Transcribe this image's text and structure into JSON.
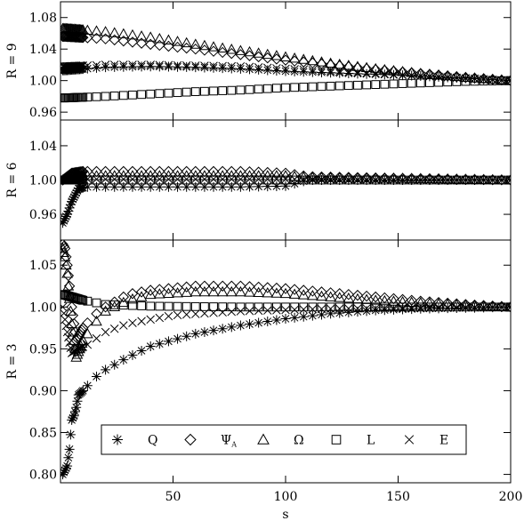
{
  "chart_data": {
    "type": "scatter",
    "xlabel": "s",
    "xlim": [
      0,
      200
    ],
    "xticks": [
      50,
      100,
      150,
      200
    ],
    "markers": {
      "Q": "asterisk",
      "Psi_A": "diamond",
      "Omega": "triangle",
      "L": "square",
      "E": "cross"
    },
    "legend": {
      "position": "bottom (inside lower panel)",
      "items": [
        {
          "key": "Q",
          "label": "Q"
        },
        {
          "key": "Psi_A",
          "label": "Ψ",
          "subscript": "A"
        },
        {
          "key": "Omega",
          "label": "Ω"
        },
        {
          "key": "L",
          "label": "L"
        },
        {
          "key": "E",
          "label": "E"
        }
      ]
    },
    "panels": [
      {
        "ylabel": "R = 9",
        "ylim": [
          0.95,
          1.1
        ],
        "yticks": [
          0.96,
          1.0,
          1.04,
          1.08
        ],
        "series": [
          {
            "key": "Q",
            "points": [
              [
                2,
                1.013
              ],
              [
                20,
                1.017
              ],
              [
                40,
                1.018
              ],
              [
                60,
                1.017
              ],
              [
                80,
                1.015
              ],
              [
                100,
                1.012
              ],
              [
                120,
                1.01
              ],
              [
                140,
                1.008
              ],
              [
                160,
                1.006
              ],
              [
                180,
                1.003
              ],
              [
                200,
                1.0
              ]
            ]
          },
          {
            "key": "Psi_A",
            "points": [
              [
                2,
                1.056
              ],
              [
                20,
                1.053
              ],
              [
                40,
                1.046
              ],
              [
                60,
                1.04
              ],
              [
                80,
                1.033
              ],
              [
                100,
                1.026
              ],
              [
                120,
                1.02
              ],
              [
                140,
                1.014
              ],
              [
                160,
                1.009
              ],
              [
                180,
                1.004
              ],
              [
                200,
                1.0
              ]
            ]
          },
          {
            "key": "Omega",
            "points": [
              [
                2,
                1.066
              ],
              [
                20,
                1.062
              ],
              [
                40,
                1.055
              ],
              [
                60,
                1.046
              ],
              [
                80,
                1.038
              ],
              [
                100,
                1.03
              ],
              [
                120,
                1.022
              ],
              [
                140,
                1.015
              ],
              [
                160,
                1.009
              ],
              [
                180,
                1.004
              ],
              [
                200,
                1.0
              ]
            ]
          },
          {
            "key": "L",
            "points": [
              [
                2,
                0.978
              ],
              [
                20,
                0.98
              ],
              [
                40,
                0.983
              ],
              [
                60,
                0.986
              ],
              [
                80,
                0.988
              ],
              [
                100,
                0.991
              ],
              [
                120,
                0.993
              ],
              [
                140,
                0.995
              ],
              [
                160,
                0.997
              ],
              [
                180,
                0.999
              ],
              [
                200,
                1.0
              ]
            ]
          },
          {
            "key": "E",
            "points": [
              [
                2,
                1.018
              ],
              [
                20,
                1.02
              ],
              [
                40,
                1.02
              ],
              [
                60,
                1.019
              ],
              [
                80,
                1.018
              ],
              [
                100,
                1.015
              ],
              [
                120,
                1.012
              ],
              [
                140,
                1.009
              ],
              [
                160,
                1.006
              ],
              [
                180,
                1.003
              ],
              [
                200,
                1.0
              ]
            ]
          }
        ]
      },
      {
        "ylabel": "R = 6",
        "ylim": [
          0.93,
          1.07
        ],
        "yticks": [
          0.96,
          1.0,
          1.04
        ],
        "series": [
          {
            "key": "Q",
            "points": [
              [
                1,
                0.95
              ],
              [
                3,
                0.96
              ],
              [
                5,
                0.975
              ],
              [
                8,
                0.99
              ],
              [
                12,
                0.992
              ],
              [
                20,
                0.992
              ],
              [
                40,
                0.992
              ],
              [
                60,
                0.992
              ],
              [
                80,
                0.992
              ],
              [
                100,
                0.993
              ],
              [
                110,
                1.0
              ],
              [
                150,
                1.0
              ],
              [
                200,
                1.0
              ]
            ]
          },
          {
            "key": "Psi_A",
            "points": [
              [
                1,
                1.0
              ],
              [
                5,
                1.008
              ],
              [
                10,
                1.01
              ],
              [
                20,
                1.01
              ],
              [
                40,
                1.01
              ],
              [
                60,
                1.01
              ],
              [
                80,
                1.01
              ],
              [
                100,
                1.008
              ],
              [
                110,
                1.004
              ],
              [
                150,
                1.002
              ],
              [
                200,
                1.0
              ]
            ]
          },
          {
            "key": "Omega",
            "points": [
              [
                1,
                1.0
              ],
              [
                5,
                1.004
              ],
              [
                10,
                1.005
              ],
              [
                20,
                1.005
              ],
              [
                40,
                1.005
              ],
              [
                60,
                1.005
              ],
              [
                80,
                1.005
              ],
              [
                100,
                1.005
              ],
              [
                110,
                1.003
              ],
              [
                150,
                1.002
              ],
              [
                200,
                1.0
              ]
            ]
          },
          {
            "key": "L",
            "points": [
              [
                1,
                1.0
              ],
              [
                10,
                1.0
              ],
              [
                40,
                1.0
              ],
              [
                80,
                1.0
              ],
              [
                110,
                1.0
              ],
              [
                200,
                1.0
              ]
            ]
          },
          {
            "key": "E",
            "points": [
              [
                1,
                1.0
              ],
              [
                5,
                1.001
              ],
              [
                20,
                1.001
              ],
              [
                60,
                1.001
              ],
              [
                100,
                1.001
              ],
              [
                110,
                1.001
              ],
              [
                150,
                1.0
              ],
              [
                200,
                1.0
              ]
            ]
          }
        ]
      },
      {
        "ylabel": "R = 3",
        "ylim": [
          0.79,
          1.08
        ],
        "yticks": [
          0.8,
          0.85,
          0.9,
          0.95,
          1.0,
          1.05
        ],
        "series": [
          {
            "key": "Q",
            "points": [
              [
                1,
                0.8
              ],
              [
                3,
                0.81
              ],
              [
                4,
                0.83
              ],
              [
                5,
                0.865
              ],
              [
                6,
                0.87
              ],
              [
                7,
                0.88
              ],
              [
                8,
                0.895
              ],
              [
                10,
                0.9
              ],
              [
                15,
                0.915
              ],
              [
                20,
                0.925
              ],
              [
                30,
                0.94
              ],
              [
                40,
                0.953
              ],
              [
                60,
                0.968
              ],
              [
                80,
                0.978
              ],
              [
                100,
                0.986
              ],
              [
                120,
                0.992
              ],
              [
                140,
                0.996
              ],
              [
                160,
                0.998
              ],
              [
                200,
                1.0
              ]
            ]
          },
          {
            "key": "Psi_A",
            "points": [
              [
                1,
                1.075
              ],
              [
                2,
                1.07
              ],
              [
                3,
                1.05
              ],
              [
                5,
                1.0
              ],
              [
                7,
                0.96
              ],
              [
                10,
                0.975
              ],
              [
                15,
                0.99
              ],
              [
                20,
                1.0
              ],
              [
                30,
                1.015
              ],
              [
                40,
                1.02
              ],
              [
                60,
                1.025
              ],
              [
                80,
                1.025
              ],
              [
                100,
                1.022
              ],
              [
                120,
                1.017
              ],
              [
                140,
                1.012
              ],
              [
                160,
                1.007
              ],
              [
                180,
                1.003
              ],
              [
                200,
                1.0
              ]
            ]
          },
          {
            "key": "Omega",
            "points": [
              [
                1,
                1.07
              ],
              [
                2,
                1.06
              ],
              [
                3,
                1.04
              ],
              [
                5,
                0.98
              ],
              [
                7,
                0.94
              ],
              [
                10,
                0.96
              ],
              [
                15,
                0.98
              ],
              [
                20,
                0.995
              ],
              [
                30,
                1.008
              ],
              [
                40,
                1.015
              ],
              [
                60,
                1.018
              ],
              [
                80,
                1.018
              ],
              [
                100,
                1.016
              ],
              [
                120,
                1.012
              ],
              [
                140,
                1.008
              ],
              [
                160,
                1.005
              ],
              [
                180,
                1.002
              ],
              [
                200,
                1.0
              ]
            ]
          },
          {
            "key": "L",
            "points": [
              [
                1,
                1.015
              ],
              [
                5,
                1.012
              ],
              [
                10,
                1.008
              ],
              [
                20,
                1.003
              ],
              [
                40,
                1.001
              ],
              [
                80,
                1.0
              ],
              [
                120,
                1.0
              ],
              [
                200,
                1.0
              ]
            ]
          },
          {
            "key": "E",
            "points": [
              [
                1,
                1.0
              ],
              [
                3,
                0.97
              ],
              [
                5,
                0.945
              ],
              [
                8,
                0.95
              ],
              [
                12,
                0.955
              ],
              [
                20,
                0.97
              ],
              [
                30,
                0.98
              ],
              [
                50,
                0.99
              ],
              [
                80,
                0.995
              ],
              [
                120,
                0.998
              ],
              [
                200,
                1.0
              ]
            ]
          }
        ]
      }
    ]
  }
}
